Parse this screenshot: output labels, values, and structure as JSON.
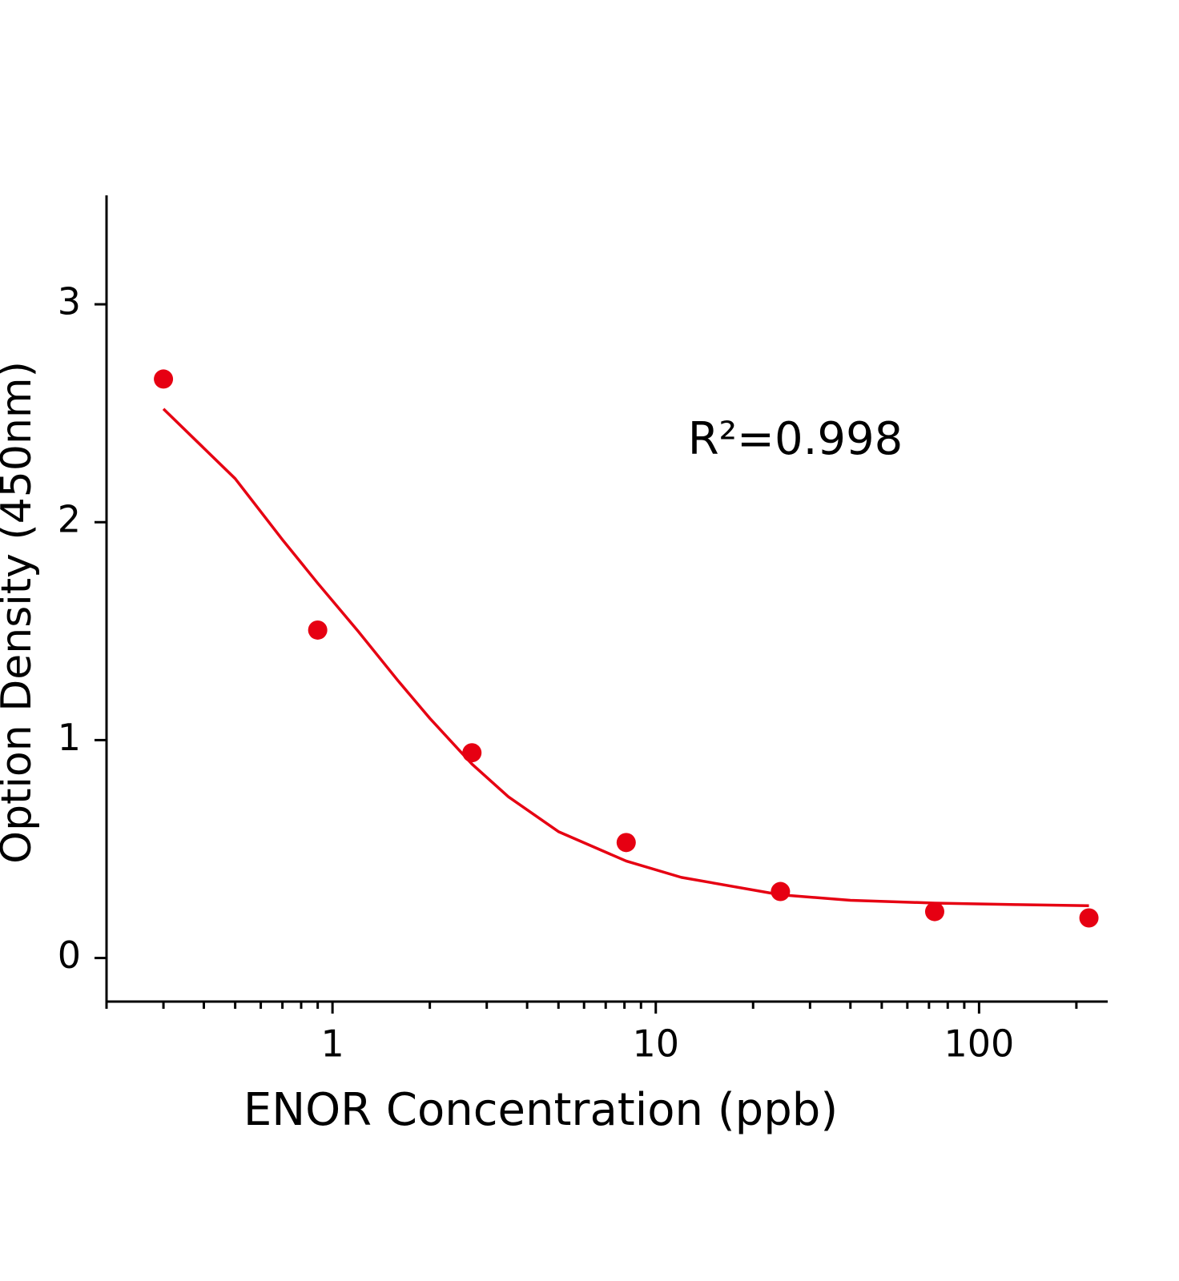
{
  "chart_data": {
    "type": "scatter",
    "xlabel": "ENOR  Concentration  (ppb)",
    "ylabel": "Option Density  (450nm)",
    "annotation": "R²=0.998",
    "xscale": "log",
    "xlim": [
      0.2,
      250
    ],
    "ylim": [
      -0.2,
      3.5
    ],
    "xticks": [
      1,
      10,
      100
    ],
    "xminorticks": [
      0.2,
      0.3,
      0.4,
      0.5,
      0.6,
      0.7,
      0.8,
      0.9,
      2,
      3,
      4,
      5,
      6,
      7,
      8,
      9,
      20,
      30,
      40,
      50,
      60,
      70,
      80,
      90,
      200
    ],
    "yticks": [
      0,
      1,
      2,
      3
    ],
    "series": [
      {
        "type": "scatter",
        "color": "#e60012",
        "x": [
          0.3,
          0.9,
          2.7,
          8.1,
          24.3,
          72.9,
          218.7
        ],
        "values": [
          2.657,
          1.505,
          0.942,
          0.53,
          0.305,
          0.213,
          0.184
        ]
      },
      {
        "type": "line",
        "color": "#e60012",
        "x": [
          0.3,
          0.5,
          0.7,
          0.9,
          1.2,
          1.6,
          2.0,
          2.7,
          3.5,
          5,
          8.1,
          12,
          24.3,
          40,
          72.9,
          130,
          218.7
        ],
        "values": [
          2.52,
          2.2,
          1.92,
          1.72,
          1.5,
          1.27,
          1.1,
          0.89,
          0.74,
          0.58,
          0.445,
          0.37,
          0.29,
          0.265,
          0.252,
          0.245,
          0.24
        ]
      }
    ]
  }
}
